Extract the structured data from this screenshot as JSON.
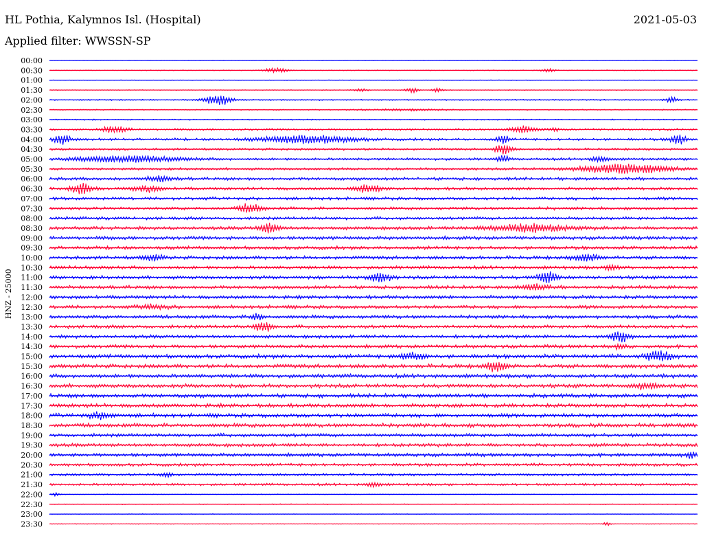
{
  "header": {
    "station": "HL Pothia, Kalymnos Isl. (Hospital)",
    "date": "2021-05-03",
    "filter": "Applied filter: WWSSN-SP"
  },
  "colors": {
    "odd": "#0000ff",
    "even": "#ff0033"
  },
  "chart_data": {
    "type": "line",
    "title": "HL Pothia, Kalymnos Isl. (Hospital)",
    "ylabel": "HNZ - 25000",
    "rows": [
      {
        "label": "00:00",
        "noise": 0.04,
        "events": []
      },
      {
        "label": "00:30",
        "noise": 0.08,
        "events": [
          [
            0.35,
            0.5,
            0.02
          ],
          [
            0.77,
            0.45,
            0.01
          ]
        ]
      },
      {
        "label": "01:00",
        "noise": 0.06,
        "events": []
      },
      {
        "label": "01:30",
        "noise": 0.07,
        "events": [
          [
            0.48,
            0.4,
            0.01
          ],
          [
            0.56,
            0.6,
            0.01
          ],
          [
            0.6,
            0.5,
            0.008
          ]
        ]
      },
      {
        "label": "02:00",
        "noise": 0.12,
        "events": [
          [
            0.26,
            1.4,
            0.02
          ],
          [
            0.96,
            0.6,
            0.01
          ]
        ]
      },
      {
        "label": "02:30",
        "noise": 0.1,
        "events": [
          [
            0.55,
            0.2,
            0.06
          ]
        ]
      },
      {
        "label": "03:00",
        "noise": 0.12,
        "events": []
      },
      {
        "label": "03:30",
        "noise": 0.2,
        "events": [
          [
            0.1,
            0.8,
            0.02
          ],
          [
            0.73,
            0.7,
            0.02
          ],
          [
            0.78,
            0.3,
            0.01
          ]
        ]
      },
      {
        "label": "04:00",
        "noise": 0.25,
        "events": [
          [
            0.02,
            1.1,
            0.012
          ],
          [
            0.4,
            0.9,
            0.07
          ],
          [
            0.7,
            0.9,
            0.01
          ],
          [
            0.97,
            1.2,
            0.012
          ]
        ]
      },
      {
        "label": "04:30",
        "noise": 0.22,
        "events": [
          [
            0.7,
            1.2,
            0.012
          ]
        ]
      },
      {
        "label": "05:00",
        "noise": 0.25,
        "events": [
          [
            0.12,
            0.7,
            0.08
          ],
          [
            0.7,
            0.7,
            0.01
          ],
          [
            0.85,
            0.6,
            0.015
          ]
        ]
      },
      {
        "label": "05:30",
        "noise": 0.25,
        "events": [
          [
            0.89,
            1.1,
            0.07
          ]
        ]
      },
      {
        "label": "06:00",
        "noise": 0.3,
        "events": [
          [
            0.17,
            0.6,
            0.02
          ]
        ]
      },
      {
        "label": "06:30",
        "noise": 0.3,
        "events": [
          [
            0.05,
            1.2,
            0.015
          ],
          [
            0.15,
            0.7,
            0.02
          ],
          [
            0.49,
            0.8,
            0.02
          ]
        ]
      },
      {
        "label": "07:00",
        "noise": 0.3,
        "events": []
      },
      {
        "label": "07:30",
        "noise": 0.3,
        "events": [
          [
            0.31,
            1.1,
            0.016
          ]
        ]
      },
      {
        "label": "08:00",
        "noise": 0.3,
        "events": []
      },
      {
        "label": "08:30",
        "noise": 0.35,
        "events": [
          [
            0.34,
            1.0,
            0.015
          ],
          [
            0.74,
            0.9,
            0.06
          ]
        ]
      },
      {
        "label": "09:00",
        "noise": 0.35,
        "events": []
      },
      {
        "label": "09:30",
        "noise": 0.35,
        "events": []
      },
      {
        "label": "10:00",
        "noise": 0.35,
        "events": [
          [
            0.16,
            0.6,
            0.015
          ],
          [
            0.83,
            0.8,
            0.02
          ]
        ]
      },
      {
        "label": "10:30",
        "noise": 0.35,
        "events": [
          [
            0.87,
            0.6,
            0.01
          ]
        ]
      },
      {
        "label": "11:00",
        "noise": 0.35,
        "events": [
          [
            0.51,
            1.2,
            0.015
          ],
          [
            0.77,
            1.3,
            0.015
          ]
        ]
      },
      {
        "label": "11:30",
        "noise": 0.35,
        "events": [
          [
            0.75,
            0.6,
            0.02
          ]
        ]
      },
      {
        "label": "12:00",
        "noise": 0.35,
        "events": []
      },
      {
        "label": "12:30",
        "noise": 0.35,
        "events": [
          [
            0.16,
            0.5,
            0.02
          ]
        ]
      },
      {
        "label": "13:00",
        "noise": 0.35,
        "events": [
          [
            0.32,
            0.8,
            0.008
          ]
        ]
      },
      {
        "label": "13:30",
        "noise": 0.35,
        "events": [
          [
            0.33,
            1.1,
            0.013
          ]
        ]
      },
      {
        "label": "14:00",
        "noise": 0.35,
        "events": [
          [
            0.88,
            1.2,
            0.015
          ]
        ]
      },
      {
        "label": "14:30",
        "noise": 0.35,
        "events": [
          [
            0.88,
            0.5,
            0.01
          ]
        ]
      },
      {
        "label": "15:00",
        "noise": 0.4,
        "events": [
          [
            0.56,
            0.7,
            0.02
          ],
          [
            0.94,
            1.1,
            0.02
          ]
        ]
      },
      {
        "label": "15:30",
        "noise": 0.4,
        "events": [
          [
            0.69,
            1.2,
            0.015
          ]
        ]
      },
      {
        "label": "16:00",
        "noise": 0.4,
        "events": []
      },
      {
        "label": "16:30",
        "noise": 0.4,
        "events": [
          [
            0.92,
            0.6,
            0.02
          ]
        ]
      },
      {
        "label": "17:00",
        "noise": 0.4,
        "events": []
      },
      {
        "label": "17:30",
        "noise": 0.4,
        "events": []
      },
      {
        "label": "18:00",
        "noise": 0.4,
        "events": [
          [
            0.08,
            0.6,
            0.02
          ]
        ]
      },
      {
        "label": "18:30",
        "noise": 0.4,
        "events": []
      },
      {
        "label": "19:00",
        "noise": 0.35,
        "events": []
      },
      {
        "label": "19:30",
        "noise": 0.35,
        "events": []
      },
      {
        "label": "20:00",
        "noise": 0.35,
        "events": [
          [
            0.99,
            0.7,
            0.008
          ]
        ]
      },
      {
        "label": "20:30",
        "noise": 0.3,
        "events": []
      },
      {
        "label": "21:00",
        "noise": 0.25,
        "events": [
          [
            0.18,
            0.5,
            0.01
          ]
        ]
      },
      {
        "label": "21:30",
        "noise": 0.25,
        "events": [
          [
            0.5,
            0.6,
            0.01
          ]
        ]
      },
      {
        "label": "22:00",
        "noise": 0.08,
        "events": [
          [
            0.01,
            0.4,
            0.006
          ]
        ]
      },
      {
        "label": "22:30",
        "noise": 0.08,
        "events": []
      },
      {
        "label": "23:00",
        "noise": 0.06,
        "events": []
      },
      {
        "label": "23:30",
        "noise": 0.06,
        "events": [
          [
            0.86,
            0.5,
            0.005
          ]
        ]
      }
    ]
  }
}
